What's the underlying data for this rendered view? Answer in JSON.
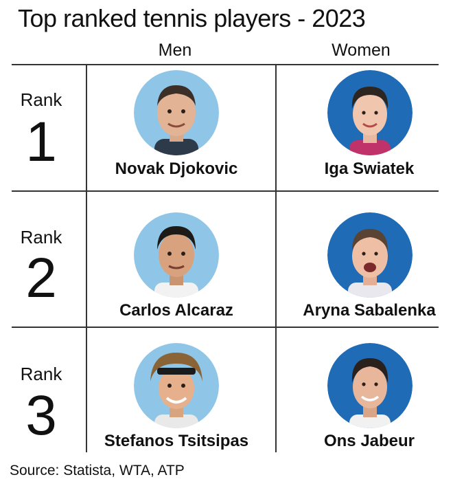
{
  "title": "Top ranked tennis players - 2023",
  "columns": {
    "men": "Men",
    "women": "Women"
  },
  "rows": [
    {
      "rank_label": "Rank",
      "rank_number": "1",
      "men": {
        "name": "Novak Djokovic",
        "avatar_icon": "player-portrait-icon"
      },
      "women": {
        "name": "Iga Swiatek",
        "avatar_icon": "player-portrait-icon"
      }
    },
    {
      "rank_label": "Rank",
      "rank_number": "2",
      "men": {
        "name": "Carlos Alcaraz",
        "avatar_icon": "player-portrait-icon"
      },
      "women": {
        "name": "Aryna Sabalenka",
        "avatar_icon": "player-portrait-icon"
      }
    },
    {
      "rank_label": "Rank",
      "rank_number": "3",
      "men": {
        "name": "Stefanos Tsitsipas",
        "avatar_icon": "player-portrait-icon"
      },
      "women": {
        "name": "Ons Jabeur",
        "avatar_icon": "player-portrait-icon"
      }
    }
  ],
  "colors": {
    "men_circle": "#8fc6e8",
    "women_circle": "#1f6bb5",
    "lines": "#333333"
  },
  "source": "Source: Statista, WTA, ATP"
}
